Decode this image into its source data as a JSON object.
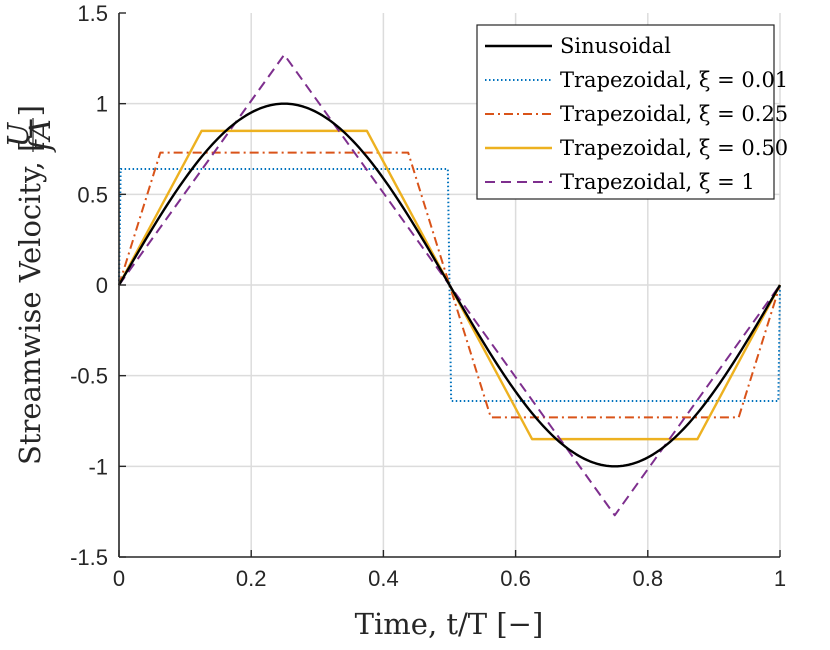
{
  "chart_data": {
    "type": "line",
    "title": "",
    "xlabel": "Time, t/T [−]",
    "ylabel": "Streamwise Velocity, U/(fA) [−]",
    "ylabel_parts": {
      "prefix": "Streamwise Velocity, ",
      "numerator": "U",
      "denominator": "fA",
      "suffix": " [−]"
    },
    "xlim": [
      0,
      1
    ],
    "ylim": [
      -1.5,
      1.5
    ],
    "xticks": [
      "0",
      "0.2",
      "0.4",
      "0.6",
      "0.8",
      "1"
    ],
    "yticks": [
      "-1.5",
      "-1",
      "-0.5",
      "0",
      "0.5",
      "1",
      "1.5"
    ],
    "grid": true,
    "legend_position": "top-right",
    "series": [
      {
        "name": "Sinusoidal",
        "label": "Sinusoidal",
        "style": "solid",
        "color": "#000000",
        "func": "sine",
        "amplitude": 1.0
      },
      {
        "name": "Trapezoidal, ξ = 0.01",
        "label": "Trapezoidal, ξ = 0.01",
        "style": "dotted",
        "color": "#0072BD",
        "func": "trapezoid",
        "xi": 0.01,
        "amplitude": 0.64
      },
      {
        "name": "Trapezoidal, ξ = 0.25",
        "label": "Trapezoidal, ξ = 0.25",
        "style": "dashdot",
        "color": "#D95319",
        "func": "trapezoid",
        "xi": 0.25,
        "amplitude": 0.73
      },
      {
        "name": "Trapezoidal, ξ = 0.50",
        "label": "Trapezoidal, ξ = 0.50",
        "style": "solid",
        "color": "#EDB120",
        "func": "trapezoid",
        "xi": 0.5,
        "amplitude": 0.85
      },
      {
        "name": "Trapezoidal, ξ = 1",
        "label": "Trapezoidal, ξ = 1",
        "style": "dashed",
        "color": "#7E2F8E",
        "func": "trapezoid",
        "xi": 1.0,
        "amplitude": 1.27
      }
    ]
  }
}
